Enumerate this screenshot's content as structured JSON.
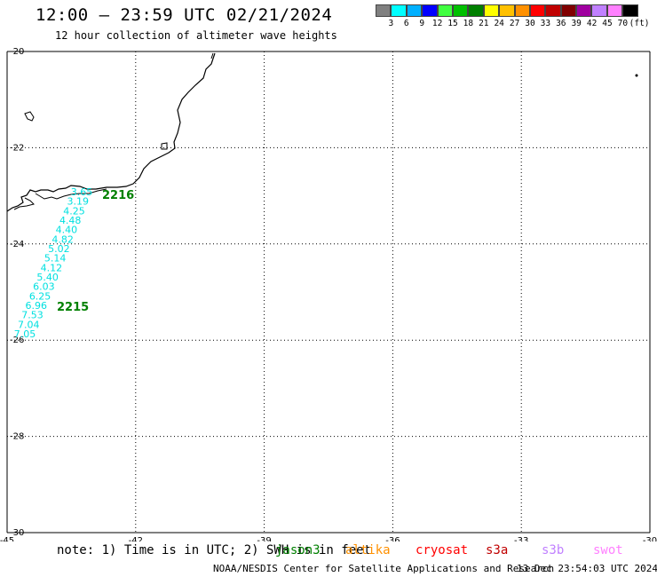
{
  "header": {
    "title": "12:00 — 23:59 UTC 02/21/2024",
    "subtitle": "12 hour collection of altimeter wave heights"
  },
  "colorbar": {
    "unit": "(ft)",
    "colors": [
      "#808080",
      "#00ffff",
      "#00b0ff",
      "#0000ff",
      "#40ff40",
      "#00c000",
      "#008000",
      "#ffff00",
      "#ffc000",
      "#ff9000",
      "#ff0000",
      "#c00000",
      "#800000",
      "#a000a0",
      "#c080ff",
      "#ff80ff",
      "#000000"
    ],
    "labels": [
      "3",
      "6",
      "9",
      "12",
      "15",
      "18",
      "21",
      "24",
      "27",
      "30",
      "33",
      "36",
      "39",
      "42",
      "45",
      "70"
    ]
  },
  "map": {
    "lon_range": [
      -45,
      -30
    ],
    "lat_range": [
      -30,
      -20
    ],
    "lon_ticks": [
      "-45",
      "-42",
      "-39",
      "-36",
      "-33",
      "-30"
    ],
    "lat_ticks": [
      "-20",
      "-22",
      "-24",
      "-26",
      "-28",
      "-30"
    ],
    "track_color": "#00e0e0",
    "wave_heights": [
      "3.65",
      "3.19",
      "4.25",
      "4.48",
      "4.40",
      "4.82",
      "5.02",
      "5.14",
      "4.12",
      "5.40",
      "6.03",
      "6.25",
      "6.96",
      "7.53",
      "7.04",
      "7.05"
    ],
    "pass_labels": [
      {
        "text": "2216",
        "color": "#008000"
      },
      {
        "text": "2215",
        "color": "#008000"
      }
    ]
  },
  "footer": {
    "note": "note: 1) Time is in UTC; 2) SWH is in feet",
    "satellites": [
      {
        "name": "jason3",
        "color": "#008000"
      },
      {
        "name": "altika",
        "color": "#ff9000"
      },
      {
        "name": "cryosat",
        "color": "#ff0000"
      },
      {
        "name": "s3a",
        "color": "#c00000"
      },
      {
        "name": "s3b",
        "color": "#c080ff"
      },
      {
        "name": "swot",
        "color": "#ff80ff"
      }
    ],
    "credit": "NOAA/NESDIS Center for Satellite Applications and Research",
    "timestamp": "13 Dec 23:54:03 UTC 2024"
  }
}
